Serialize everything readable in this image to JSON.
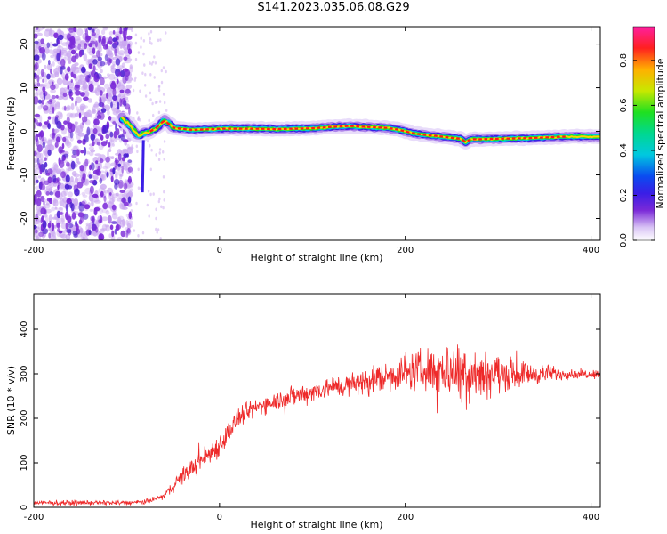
{
  "title": "S141.2023.035.06.08.G29",
  "colors": {
    "snr_line": "#ee2a2a",
    "frame": "#000000",
    "noise": "#7b2ad8",
    "noise_light": "#c9a6f0"
  },
  "chart_data": [
    {
      "type": "heatmap",
      "xlabel": "Height of straight line (km)",
      "ylabel": "Frequency (Hz)",
      "xlim": [
        -200,
        410
      ],
      "ylim": [
        -25,
        24
      ],
      "xticks": [
        -200,
        0,
        200,
        400
      ],
      "yticks": [
        -20,
        -10,
        0,
        10,
        20
      ],
      "grid": false,
      "colorbar": {
        "label": "Normalized spectral amplitude",
        "range": [
          0.0,
          0.95
        ],
        "ticks": [
          0.0,
          0.2,
          0.4,
          0.6,
          0.8
        ],
        "tick_labels": [
          "0.0",
          "0.2",
          "0.4",
          "0.6",
          "0.8"
        ],
        "colormap": "rainbow (white-violet-blue-cyan-green-yellow-red-magenta)"
      },
      "noise_region_x": [
        -200,
        -95
      ],
      "ridge": {
        "x": [
          -105,
          -95,
          -88,
          -82,
          -75,
          -68,
          -60,
          -55,
          -50,
          -40,
          -30,
          -20,
          -10,
          0,
          20,
          40,
          60,
          80,
          100,
          120,
          140,
          160,
          180,
          190,
          200,
          210,
          220,
          230,
          240,
          250,
          260,
          265,
          270,
          280,
          300,
          320,
          340,
          360,
          380,
          400,
          410
        ],
        "freq": [
          3,
          1,
          -1,
          -0.5,
          0,
          0.8,
          2.5,
          1.8,
          0.8,
          0.6,
          0.3,
          0.4,
          0.5,
          0.6,
          0.6,
          0.6,
          0.5,
          0.6,
          0.7,
          1.0,
          1.2,
          1.0,
          0.8,
          0.5,
          0,
          -0.5,
          -0.8,
          -1,
          -1.2,
          -1.5,
          -1.7,
          -2.5,
          -1.8,
          -1.8,
          -1.7,
          -1.6,
          -1.5,
          -1.3,
          -1.2,
          -1.2,
          -1.2
        ]
      }
    },
    {
      "type": "line",
      "xlabel": "Height of straight line (km)",
      "ylabel": "SNR (10 * v/v)",
      "xlim": [
        -200,
        410
      ],
      "ylim": [
        0,
        480
      ],
      "xticks": [
        -200,
        0,
        200,
        400
      ],
      "yticks": [
        0,
        100,
        200,
        300,
        400
      ],
      "grid": false,
      "series": [
        {
          "x": [
            -200,
            -150,
            -100,
            -80,
            -60,
            -40,
            -20,
            0,
            20,
            40,
            60,
            80,
            100,
            120,
            140,
            160,
            180,
            200,
            220,
            240,
            260,
            280,
            300,
            320,
            340,
            360,
            380,
            400,
            410
          ],
          "y": [
            10,
            10,
            10,
            12,
            25,
            70,
            105,
            140,
            200,
            225,
            240,
            250,
            260,
            270,
            275,
            285,
            295,
            305,
            310,
            310,
            310,
            305,
            300,
            300,
            300,
            300,
            300,
            300,
            300
          ],
          "noise_amp": [
            8,
            8,
            8,
            8,
            10,
            30,
            35,
            40,
            35,
            30,
            30,
            35,
            35,
            35,
            40,
            45,
            55,
            60,
            70,
            85,
            100,
            90,
            65,
            45,
            35,
            25,
            15,
            15,
            15
          ]
        }
      ]
    }
  ]
}
